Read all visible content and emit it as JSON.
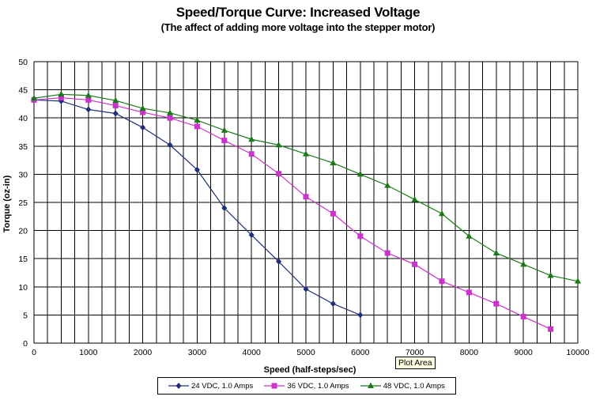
{
  "chart_data": {
    "type": "line",
    "title": "Speed/Torque Curve: Increased Voltage",
    "subtitle": "(The affect of adding more voltage into the stepper motor)",
    "xlabel": "Speed (half-steps/sec)",
    "ylabel": "Torque (oz-in)",
    "xlim": [
      0,
      10000
    ],
    "ylim": [
      0,
      50
    ],
    "xticks": [
      "0",
      "1000",
      "2000",
      "3000",
      "4000",
      "5000",
      "6000",
      "7000",
      "8000",
      "9000",
      "10000"
    ],
    "yticks": [
      "0",
      "5",
      "10",
      "15",
      "20",
      "25",
      "30",
      "35",
      "40",
      "45",
      "50"
    ],
    "grid": true,
    "legend_position": "bottom",
    "series": [
      {
        "name": "24 VDC,  1.0  Amps",
        "color": "#1f2f7a",
        "marker": "diamond",
        "x": [
          0,
          500,
          1000,
          1500,
          2000,
          2500,
          3000,
          3500,
          4000,
          4500,
          5000,
          5500,
          6000
        ],
        "y": [
          43.2,
          43.0,
          41.5,
          40.8,
          38.3,
          35.2,
          30.8,
          24.0,
          19.2,
          14.5,
          9.6,
          7.0,
          5.0
        ]
      },
      {
        "name": "36 VDC,  1.0 Amps",
        "color": "#cc33cc",
        "marker": "square",
        "x": [
          0,
          500,
          1000,
          1500,
          2000,
          2500,
          3000,
          3500,
          4000,
          4500,
          5000,
          5500,
          6000,
          6500,
          7000,
          7500,
          8000,
          8500,
          9000,
          9500
        ],
        "y": [
          43.2,
          43.6,
          43.2,
          42.2,
          41.0,
          40.0,
          38.5,
          36.0,
          33.6,
          30.1,
          26.0,
          23.0,
          19.0,
          16.0,
          14.0,
          11.0,
          9.0,
          7.0,
          4.7,
          2.5
        ]
      },
      {
        "name": "48 VDC,  1.0 Amps",
        "color": "#1a7a1a",
        "marker": "triangle",
        "x": [
          0,
          500,
          1000,
          1500,
          2000,
          2500,
          3000,
          3500,
          4000,
          4500,
          5000,
          5500,
          6000,
          6500,
          7000,
          7500,
          8000,
          8500,
          9000,
          9500,
          10000
        ],
        "y": [
          43.5,
          44.2,
          44.0,
          43.1,
          41.7,
          40.9,
          39.6,
          37.8,
          36.2,
          35.2,
          33.6,
          32.0,
          30.0,
          28.0,
          25.5,
          23.0,
          19.0,
          16.0,
          14.0,
          12.0,
          11.0
        ]
      }
    ]
  },
  "tooltip": {
    "text": "Plot Area"
  }
}
